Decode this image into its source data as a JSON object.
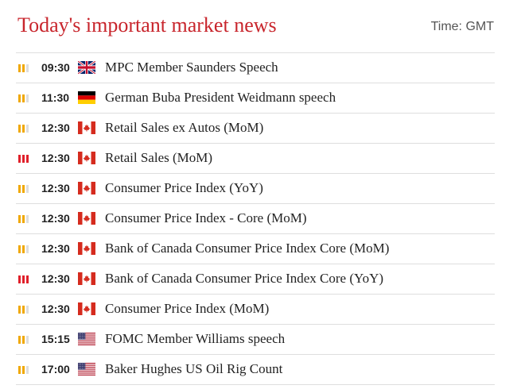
{
  "header": {
    "title": "Today's important market news",
    "timezone": "Time: GMT"
  },
  "colors": {
    "title": "#c8252c",
    "importance_high": "#e0202a",
    "importance_medium": "#f0a800",
    "importance_inactive": "#dddddd"
  },
  "events": [
    {
      "time": "09:30",
      "country_flag": "uk-flag-icon",
      "importance": 2,
      "title": "MPC Member Saunders Speech"
    },
    {
      "time": "11:30",
      "country_flag": "germany-flag-icon",
      "importance": 2,
      "title": "German Buba President Weidmann speech"
    },
    {
      "time": "12:30",
      "country_flag": "canada-flag-icon",
      "importance": 2,
      "title": "Retail Sales ex Autos (MoM)"
    },
    {
      "time": "12:30",
      "country_flag": "canada-flag-icon",
      "importance": 3,
      "title": "Retail Sales (MoM)"
    },
    {
      "time": "12:30",
      "country_flag": "canada-flag-icon",
      "importance": 2,
      "title": "Consumer Price Index (YoY)"
    },
    {
      "time": "12:30",
      "country_flag": "canada-flag-icon",
      "importance": 2,
      "title": "Consumer Price Index - Core (MoM)"
    },
    {
      "time": "12:30",
      "country_flag": "canada-flag-icon",
      "importance": 2,
      "title": "Bank of Canada Consumer Price Index Core (MoM)"
    },
    {
      "time": "12:30",
      "country_flag": "canada-flag-icon",
      "importance": 3,
      "title": "Bank of Canada Consumer Price Index Core (YoY)"
    },
    {
      "time": "12:30",
      "country_flag": "canada-flag-icon",
      "importance": 2,
      "title": "Consumer Price Index (MoM)"
    },
    {
      "time": "15:15",
      "country_flag": "usa-flag-icon",
      "importance": 2,
      "title": "FOMC Member Williams speech"
    },
    {
      "time": "17:00",
      "country_flag": "usa-flag-icon",
      "importance": 2,
      "title": "Baker Hughes US Oil Rig Count"
    }
  ]
}
